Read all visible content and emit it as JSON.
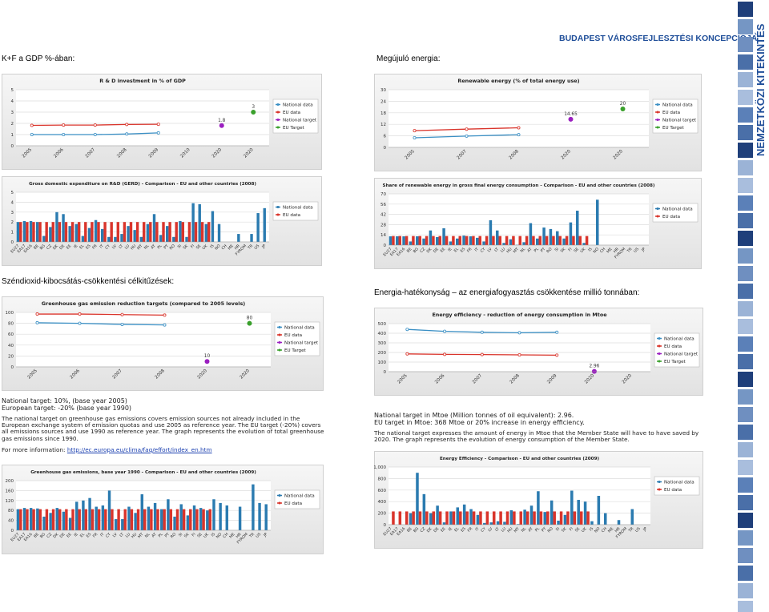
{
  "header": {
    "title": "BUDAPEST VÁROSFEJLESZTÉSI KONCEPCIÓJA",
    "side_title": "NEMZETKÖZI KITEKINTÉS"
  },
  "sections": [
    "K+F a GDP %-ában:",
    "Megújuló energia:",
    "Széndioxid-kibocsátás-csökkentési célkitűzések:",
    "Energia-hatékonyság – az energiafogyasztás csökkentése millió tonnában:"
  ],
  "notes": {
    "ghg": {
      "targets": [
        "National target: 10%, (base year 2005)",
        "European target: -20% (base year 1990)"
      ],
      "text": "The national target on greenhouse gas emissions covers emission sources not already included in the European exchange system of emission quotas and use 2005 as reference year. The EU target (-20%) covers all emissions sources and use 1990 as reference year. The graph represents the evolution of total greenhouse gas emissions since 1990.",
      "more_info": "For more information:",
      "link": "http://ec.europa.eu/clima/faq/effort/index_en.htm"
    },
    "energy": {
      "targets": [
        "National target in Mtoe (Million tonnes of oil equivalent): 2.96.",
        "EU target in Mtoe: 368 Mtoe or 20% increase in energy efficiency."
      ],
      "text": "The national target expresses the amount of energy in Mtoe that the Member State will have to have saved by 2020. The graph represents the evolution of energy consumption of the Member State."
    }
  },
  "chart_data": [
    {
      "type": "line",
      "title": "R & D investment in % of GDP",
      "categories": [
        "2005",
        "2006",
        "2007",
        "2008",
        "2009",
        "2010",
        "2020",
        "2020"
      ],
      "ylim": [
        0,
        5
      ],
      "yticks": [
        0,
        1,
        2,
        3,
        4,
        5
      ],
      "grid": true,
      "series": [
        {
          "name": "National data",
          "color": "#3a8fc4",
          "style": "line",
          "values": [
            1.0,
            1.0,
            1.0,
            1.05,
            1.15,
            null,
            null,
            null
          ]
        },
        {
          "name": "EU data",
          "color": "#d9342b",
          "style": "line",
          "values": [
            1.82,
            1.85,
            1.85,
            1.9,
            1.92,
            null,
            null,
            null
          ]
        },
        {
          "name": "National target",
          "color": "#9b1fc0",
          "style": "point",
          "values": [
            null,
            null,
            null,
            null,
            null,
            null,
            1.8,
            null
          ]
        },
        {
          "name": "EU Target",
          "color": "#3aa02c",
          "style": "point",
          "values": [
            null,
            null,
            null,
            null,
            null,
            null,
            null,
            3
          ]
        }
      ]
    },
    {
      "type": "line",
      "title": "Renewable energy (% of total energy use)",
      "categories": [
        "2005",
        "2007",
        "2008",
        "2020",
        "2020"
      ],
      "ylim": [
        0,
        30
      ],
      "yticks": [
        0,
        6,
        12,
        18,
        24,
        30
      ],
      "grid": true,
      "series": [
        {
          "name": "National data",
          "color": "#3a8fc4",
          "style": "line",
          "values": [
            5.0,
            5.9,
            6.6,
            null,
            null
          ]
        },
        {
          "name": "EU data",
          "color": "#d9342b",
          "style": "line",
          "values": [
            8.7,
            9.5,
            10.2,
            null,
            null
          ]
        },
        {
          "name": "National target",
          "color": "#9b1fc0",
          "style": "point",
          "values": [
            null,
            null,
            null,
            14.65,
            null
          ]
        },
        {
          "name": "EU Target",
          "color": "#3aa02c",
          "style": "point",
          "values": [
            null,
            null,
            null,
            null,
            20
          ]
        }
      ]
    },
    {
      "type": "bar",
      "title": "Gross domestic expenditure on R&D (GERD) - Comparison - EU and other countries (2008)",
      "categories": [
        "EU27",
        "EA17",
        "EA16",
        "BE",
        "BG",
        "CZ",
        "DK",
        "DE",
        "EE",
        "IE",
        "EL",
        "ES",
        "FR",
        "IT",
        "CY",
        "LV",
        "LT",
        "LU",
        "HU",
        "MT",
        "NL",
        "AT",
        "PL",
        "PT",
        "RO",
        "SI",
        "SK",
        "FI",
        "SE",
        "UK",
        "IS",
        "NO",
        "CH",
        "ME",
        "HR",
        "FYROM",
        "TR",
        "US",
        "JP"
      ],
      "ylim": [
        0,
        5
      ],
      "yticks": [
        0,
        1,
        2,
        3,
        4,
        5
      ],
      "grid": true,
      "series": [
        {
          "name": "National data",
          "color": "#2b7bb0",
          "values": [
            2.0,
            2.1,
            2.1,
            2.0,
            0.6,
            1.5,
            3.0,
            2.8,
            1.6,
            1.8,
            0.6,
            1.4,
            2.2,
            1.3,
            0.5,
            0.5,
            0.8,
            1.6,
            1.2,
            0.5,
            1.8,
            2.8,
            0.7,
            1.6,
            0.5,
            2.1,
            0.5,
            3.9,
            3.8,
            1.8,
            3.1,
            1.8,
            null,
            null,
            0.8,
            null,
            0.8,
            2.9,
            3.4
          ]
        },
        {
          "name": "EU data",
          "color": "#d9342b",
          "values": [
            2.0,
            2.0,
            2.0,
            2.0,
            2.0,
            2.0,
            2.0,
            2.0,
            2.0,
            2.0,
            2.0,
            2.0,
            2.0,
            2.0,
            2.0,
            2.0,
            2.0,
            2.0,
            2.0,
            2.0,
            2.0,
            2.0,
            2.0,
            2.0,
            2.0,
            2.0,
            2.0,
            2.0,
            2.0,
            2.0,
            null,
            null,
            null,
            null,
            null,
            null,
            null,
            null,
            null
          ]
        }
      ]
    },
    {
      "type": "bar",
      "title": "Share of renewable energy in gross final energy consumption - Comparison - EU and other countries (2008)",
      "categories": [
        "EU27",
        "EA17",
        "EA16",
        "BE",
        "BG",
        "CZ",
        "DK",
        "DE",
        "EE",
        "IE",
        "EL",
        "ES",
        "FR",
        "IT",
        "CY",
        "LV",
        "LT",
        "LU",
        "HU",
        "MT",
        "NL",
        "AT",
        "PL",
        "PT",
        "RO",
        "SI",
        "SK",
        "FI",
        "SE",
        "UK",
        "IS",
        "NO",
        "CH",
        "ME",
        "HR",
        "FYROM",
        "TR",
        "US",
        "JP"
      ],
      "ylim": [
        0,
        70
      ],
      "yticks": [
        0,
        14,
        28,
        42,
        56,
        70
      ],
      "grid": true,
      "series": [
        {
          "name": "National data",
          "color": "#2b7bb0",
          "values": [
            12,
            12,
            12,
            5,
            12,
            9,
            20,
            11,
            23,
            5,
            9,
            13,
            12,
            10,
            5,
            34,
            20,
            3,
            8,
            0.4,
            4,
            30,
            9,
            24,
            22,
            19,
            9,
            31,
            47,
            3,
            null,
            62,
            null,
            null,
            null,
            null,
            null,
            null,
            null
          ]
        },
        {
          "name": "EU data",
          "color": "#d9342b",
          "values": [
            12.4,
            12.4,
            12.4,
            12.4,
            12.4,
            12.4,
            12.4,
            12.4,
            12.4,
            12.4,
            12.4,
            12.4,
            12.4,
            12.4,
            12.4,
            12.4,
            12.4,
            12.4,
            12.4,
            12.4,
            12.4,
            12.4,
            12.4,
            12.4,
            12.4,
            12.4,
            12.4,
            12.4,
            12.4,
            12.4,
            null,
            null,
            null,
            null,
            null,
            null,
            null,
            null,
            null
          ]
        }
      ]
    },
    {
      "type": "line",
      "title": "Greenhouse gas emission reduction targets (compared to 2005 levels)",
      "categories": [
        "2005",
        "2006",
        "2007",
        "2008",
        "2020",
        "2020"
      ],
      "ylim": [
        0,
        100
      ],
      "yticks": [
        0,
        20,
        40,
        60,
        80,
        100
      ],
      "grid": true,
      "series": [
        {
          "name": "National data",
          "color": "#3a8fc4",
          "style": "line",
          "values": [
            81,
            80,
            78,
            77,
            null,
            null
          ]
        },
        {
          "name": "EU data",
          "color": "#d9342b",
          "style": "line",
          "values": [
            97,
            97,
            96,
            95,
            null,
            null
          ]
        },
        {
          "name": "National target",
          "color": "#9b1fc0",
          "style": "point",
          "values": [
            null,
            null,
            null,
            null,
            10,
            null
          ]
        },
        {
          "name": "EU Target",
          "color": "#3aa02c",
          "style": "point",
          "values": [
            null,
            null,
            null,
            null,
            null,
            80
          ]
        }
      ]
    },
    {
      "type": "line",
      "title": "Energy efficiency - reduction of energy consumption in Mtoe",
      "categories": [
        "2005",
        "2006",
        "2007",
        "2008",
        "2009",
        "2020",
        "2020"
      ],
      "ylim": [
        0,
        500
      ],
      "yticks": [
        0,
        100,
        200,
        300,
        400,
        500
      ],
      "grid": true,
      "series": [
        {
          "name": "National data",
          "color": "#3a8fc4",
          "style": "line",
          "values": [
            440,
            420,
            410,
            405,
            410,
            null,
            null
          ]
        },
        {
          "name": "EU data",
          "color": "#d9342b",
          "style": "line",
          "values": [
            185,
            180,
            178,
            175,
            172,
            null,
            null
          ]
        },
        {
          "name": "National target",
          "color": "#9b1fc0",
          "style": "point",
          "values": [
            null,
            null,
            null,
            null,
            null,
            2.96,
            null
          ]
        },
        {
          "name": "EU Target",
          "color": "#3aa02c",
          "style": "point",
          "values": [
            null,
            null,
            null,
            null,
            null,
            null,
            null
          ]
        }
      ]
    },
    {
      "type": "bar",
      "title": "Greenhouse gas emissions, base year 1990 - Comparison - EU and other countries (2009)",
      "categories": [
        "EU27",
        "EA17",
        "EA16",
        "BE",
        "BG",
        "CZ",
        "DK",
        "DE",
        "EE",
        "IE",
        "EL",
        "ES",
        "FR",
        "IT",
        "CY",
        "LV",
        "LT",
        "LU",
        "HU",
        "MT",
        "NL",
        "AT",
        "PL",
        "PT",
        "RO",
        "SI",
        "SK",
        "FI",
        "SE",
        "UK",
        "IS",
        "NO",
        "CH",
        "ME",
        "HR",
        "FYROM",
        "TR",
        "US",
        "JP"
      ],
      "ylim": [
        0,
        200
      ],
      "yticks": [
        0,
        40,
        80,
        120,
        160,
        200
      ],
      "grid": true,
      "series": [
        {
          "name": "National data",
          "color": "#2b7bb0",
          "values": [
            85,
            90,
            90,
            88,
            55,
            70,
            90,
            75,
            50,
            115,
            120,
            130,
            95,
            100,
            160,
            45,
            45,
            95,
            70,
            145,
            95,
            110,
            85,
            125,
            55,
            105,
            60,
            100,
            90,
            80,
            125,
            110,
            100,
            null,
            95,
            null,
            185,
            110,
            105
          ]
        },
        {
          "name": "EU data",
          "color": "#d9342b",
          "values": [
            85,
            85,
            85,
            85,
            85,
            85,
            85,
            85,
            85,
            85,
            85,
            85,
            85,
            85,
            85,
            85,
            85,
            85,
            85,
            85,
            85,
            85,
            85,
            85,
            85,
            85,
            85,
            85,
            85,
            85,
            null,
            null,
            null,
            null,
            null,
            null,
            null,
            null,
            null
          ]
        }
      ]
    },
    {
      "type": "bar",
      "title": "Energy Efficiency - Comparison - EU and other countries (2009)",
      "categories": [
        "EU27",
        "EA17",
        "EA16",
        "BE",
        "BG",
        "CZ",
        "DK",
        "DE",
        "EE",
        "IE",
        "EL",
        "ES",
        "FR",
        "IT",
        "CY",
        "LV",
        "LT",
        "LU",
        "HU",
        "MT",
        "NL",
        "AT",
        "PL",
        "PT",
        "RO",
        "SI",
        "SK",
        "FI",
        "SE",
        "UK",
        "IS",
        "NO",
        "CH",
        "ME",
        "HR",
        "FYROM",
        "TR",
        "US",
        "JP"
      ],
      "ylim": [
        0,
        1000
      ],
      "yticks": [
        0,
        200,
        400,
        600,
        800,
        {
          "value": 1000,
          "label": "1,000"
        }
      ],
      "grid": true,
      "series": [
        {
          "name": "National data",
          "color": "#2b7bb0",
          "values": [
            null,
            null,
            null,
            200,
            900,
            530,
            200,
            330,
            40,
            230,
            300,
            350,
            270,
            170,
            30,
            40,
            60,
            50,
            250,
            10,
            260,
            330,
            580,
            220,
            420,
            70,
            170,
            590,
            430,
            400,
            60,
            500,
            200,
            null,
            80,
            null,
            270,
            null,
            null
          ]
        },
        {
          "name": "EU data",
          "color": "#d9342b",
          "values": [
            230,
            230,
            230,
            230,
            230,
            230,
            230,
            230,
            230,
            230,
            230,
            230,
            230,
            230,
            230,
            230,
            230,
            230,
            230,
            230,
            230,
            230,
            230,
            230,
            230,
            230,
            230,
            230,
            230,
            230,
            null,
            null,
            null,
            null,
            null,
            null,
            null,
            null,
            null
          ]
        }
      ]
    }
  ]
}
